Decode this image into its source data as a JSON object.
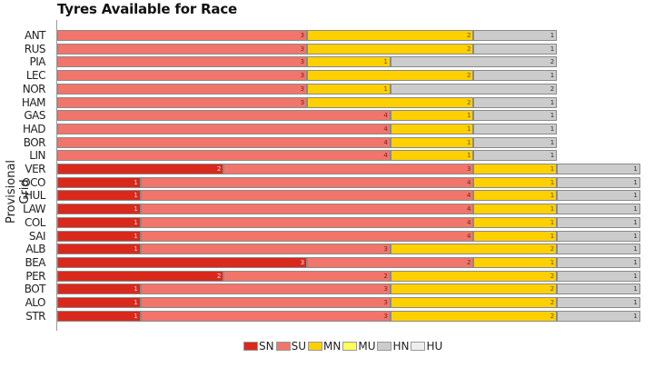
{
  "title": "Tyres Available for Race",
  "ylabel": "Provisional Grid",
  "colors": {
    "SN": "#d9291c",
    "SU": "#f1756a",
    "MN": "#fed000",
    "MU": "#ffff55",
    "HN": "#cccccc",
    "HU": "#eeeeee"
  },
  "legend": [
    {
      "key": "SN",
      "label": "SN"
    },
    {
      "key": "SU",
      "label": "SU"
    },
    {
      "key": "MN",
      "label": "MN"
    },
    {
      "key": "MU",
      "label": "MU"
    },
    {
      "key": "HN",
      "label": "HN"
    },
    {
      "key": "HU",
      "label": "HU"
    }
  ],
  "chart_data": {
    "type": "bar",
    "orientation": "horizontal-stacked",
    "title": "Tyres Available for Race",
    "xlabel": "",
    "ylabel": "Provisional Grid",
    "xlim": [
      0,
      7
    ],
    "legend_position": "bottom",
    "grid": false,
    "categories": [
      "ANT",
      "RUS",
      "PIA",
      "LEC",
      "NOR",
      "HAM",
      "GAS",
      "HAD",
      "BOR",
      "LIN",
      "VER",
      "OCO",
      "HUL",
      "LAW",
      "COL",
      "SAI",
      "ALB",
      "BEA",
      "PER",
      "BOT",
      "ALO",
      "STR"
    ],
    "series": [
      {
        "name": "SN",
        "values": [
          0,
          0,
          0,
          0,
          0,
          0,
          0,
          0,
          0,
          0,
          2,
          1,
          1,
          1,
          1,
          1,
          1,
          3,
          2,
          1,
          1,
          1
        ]
      },
      {
        "name": "SU",
        "values": [
          3,
          3,
          3,
          3,
          3,
          3,
          4,
          4,
          4,
          4,
          3,
          4,
          4,
          4,
          4,
          4,
          3,
          2,
          2,
          3,
          3,
          3
        ]
      },
      {
        "name": "MN",
        "values": [
          2,
          2,
          1,
          2,
          1,
          2,
          1,
          1,
          1,
          1,
          1,
          1,
          1,
          1,
          1,
          1,
          2,
          1,
          2,
          2,
          2,
          2
        ]
      },
      {
        "name": "MU",
        "values": [
          0,
          0,
          0,
          0,
          0,
          0,
          0,
          0,
          0,
          0,
          0,
          0,
          0,
          0,
          0,
          0,
          0,
          0,
          0,
          0,
          0,
          0
        ]
      },
      {
        "name": "HN",
        "values": [
          1,
          1,
          2,
          1,
          2,
          1,
          1,
          1,
          1,
          1,
          1,
          1,
          1,
          1,
          1,
          1,
          1,
          1,
          1,
          1,
          1,
          1
        ]
      },
      {
        "name": "HU",
        "values": [
          0,
          0,
          0,
          0,
          0,
          0,
          0,
          0,
          0,
          0,
          0,
          0,
          0,
          0,
          0,
          0,
          0,
          0,
          0,
          0,
          0,
          0
        ]
      }
    ]
  }
}
